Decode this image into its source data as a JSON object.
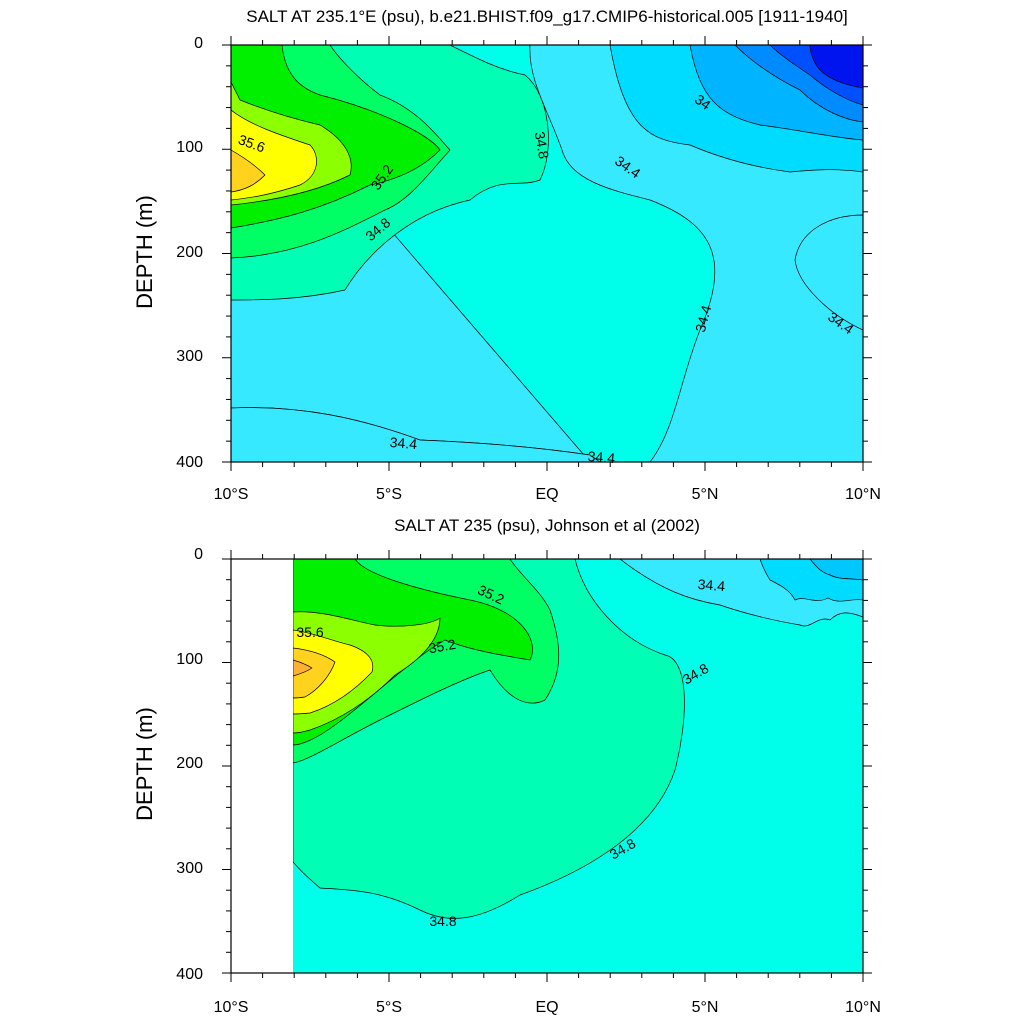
{
  "chart_data": [
    {
      "type": "heatmap",
      "variable": "SALT",
      "units": "psu",
      "title": "SALT AT 235.1°E (psu), b.e21.BHIST.f09_g17.CMIP6-historical.005 [1911-1940]",
      "xlabel": "",
      "ylabel": "DEPTH (m)",
      "x_tick_labels": [
        "10°S",
        "5°S",
        "EQ",
        "5°N",
        "10°N"
      ],
      "x_range_lat": [
        -10,
        10
      ],
      "y_tick_labels": [
        "0",
        "100",
        "200",
        "300",
        "400"
      ],
      "ylim": [
        0,
        400
      ],
      "y_reversed": true,
      "contour_interval": 0.2,
      "contour_labels": [
        {
          "text": "35.6",
          "lat": -9.4,
          "depth": 95
        },
        {
          "text": "35.2",
          "lat": -4.9,
          "depth": 137
        },
        {
          "text": "34.8",
          "lat": -4.7,
          "depth": 178
        },
        {
          "text": "34.8",
          "lat": -0.3,
          "depth": 94
        },
        {
          "text": "34.4",
          "lat": 2.6,
          "depth": 116
        },
        {
          "text": "34",
          "lat": 5.0,
          "depth": 55
        },
        {
          "text": "34.4",
          "lat": 5.3,
          "depth": 265
        },
        {
          "text": "34.4",
          "lat": 9.3,
          "depth": 272
        },
        {
          "text": "34.4",
          "lat": -4.6,
          "depth": 382
        },
        {
          "text": "34.4",
          "lat": 1.8,
          "depth": 395
        }
      ],
      "regions": [
        {
          "level": "34.4-34.6",
          "color": "#36E9FF"
        },
        {
          "level": "34.6-34.8",
          "color": "#00FFEB"
        },
        {
          "level": "34.8-35.0",
          "color": "#00FFB4"
        },
        {
          "level": "35.0-35.2",
          "color": "#00FF64"
        },
        {
          "level": "35.2-35.4",
          "color": "#00F000"
        },
        {
          "level": "35.4-35.6",
          "color": "#8CFF00"
        },
        {
          "level": "35.6-35.8",
          "color": "#FFFF00"
        },
        {
          "level": "35.8-36.0",
          "color": "#FFD21E"
        },
        {
          "level": "34.2-34.4",
          "color": "#00DCFF"
        },
        {
          "level": "34.0-34.2",
          "color": "#00B4FF"
        },
        {
          "level": "33.8-34.0",
          "color": "#008CFF"
        },
        {
          "level": "33.6-33.8",
          "color": "#0050FF"
        },
        {
          "level": "33.4-33.6",
          "color": "#0014F0"
        }
      ]
    },
    {
      "type": "heatmap",
      "variable": "SALT",
      "units": "psu",
      "title": "SALT AT 235 (psu), Johnson et al (2002)",
      "xlabel": "",
      "ylabel": "DEPTH (m)",
      "x_tick_labels": [
        "10°S",
        "5°S",
        "EQ",
        "5°N",
        "10°N"
      ],
      "x_range_lat": [
        -10,
        10
      ],
      "data_lat_range": [
        -8,
        10
      ],
      "y_tick_labels": [
        "0",
        "100",
        "200",
        "300",
        "400"
      ],
      "ylim": [
        0,
        400
      ],
      "y_reversed": true,
      "contour_interval": 0.2,
      "contour_labels": [
        {
          "text": "35.2",
          "lat": -2.2,
          "depth": 35
        },
        {
          "text": "35.6",
          "lat": -7.5,
          "depth": 73
        },
        {
          "text": "35.2",
          "lat": -3.1,
          "depth": 85
        },
        {
          "text": "34.4",
          "lat": 5.3,
          "depth": 27
        },
        {
          "text": "34.8",
          "lat": 4.8,
          "depth": 108
        },
        {
          "text": "34.8",
          "lat": 2.4,
          "depth": 278
        },
        {
          "text": "34.8",
          "lat": -3.1,
          "depth": 348
        }
      ],
      "regions": [
        {
          "level": "34.6-34.8",
          "color": "#00FFEB"
        },
        {
          "level": "34.8-35.0",
          "color": "#00FFB4"
        },
        {
          "level": "35.0-35.2",
          "color": "#00FF64"
        },
        {
          "level": "35.2-35.4",
          "color": "#00F000"
        },
        {
          "level": "35.4-35.6",
          "color": "#8CFF00"
        },
        {
          "level": "35.6-35.8",
          "color": "#FFFF00"
        },
        {
          "level": "35.8-36.0",
          "color": "#FFD21E"
        },
        {
          "level": "36.0-36.2",
          "color": "#FFAF32"
        },
        {
          "level": "34.4-34.6",
          "color": "#36E9FF"
        },
        {
          "level": "34.2-34.4",
          "color": "#00DCFF"
        },
        {
          "level": "34.0-34.2",
          "color": "#00C8FF"
        }
      ]
    }
  ]
}
